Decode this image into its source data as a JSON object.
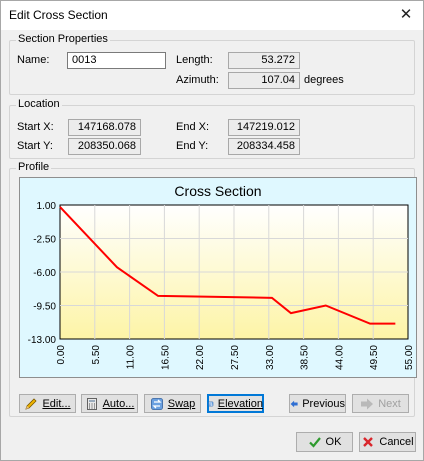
{
  "window": {
    "title": "Edit Cross Section",
    "close_glyph": "✕"
  },
  "section_properties": {
    "title": "Section Properties",
    "name_label": "Name:",
    "name_value": "0013",
    "length_label": "Length:",
    "length_value": "53.272",
    "azimuth_label": "Azimuth:",
    "azimuth_value": "107.04",
    "azimuth_unit": "degrees"
  },
  "location": {
    "title": "Location",
    "start_x_label": "Start X:",
    "start_x_value": "147168.078",
    "end_x_label": "End X:",
    "end_x_value": "147219.012",
    "start_y_label": "Start Y:",
    "start_y_value": "208350.068",
    "end_y_label": "End Y:",
    "end_y_value": "208334.458"
  },
  "profile": {
    "title": "Profile",
    "buttons": {
      "edit": "Edit...",
      "auto": "Auto...",
      "swap": "Swap",
      "elevation": "Elevation",
      "previous": "Previous",
      "next": "Next"
    }
  },
  "chart_data": {
    "type": "line",
    "title": "Cross Section",
    "xlabel": "",
    "ylabel": "",
    "xlim": [
      0,
      55
    ],
    "ylim": [
      -13,
      1
    ],
    "x_ticks": [
      "0.00",
      "5.50",
      "11.00",
      "16.50",
      "22.00",
      "27.50",
      "33.00",
      "38.50",
      "44.00",
      "49.50",
      "55.00"
    ],
    "y_ticks": [
      "1.00",
      "-2.50",
      "-6.00",
      "-9.50",
      "-13.00"
    ],
    "grid": true,
    "line_color": "#ff0000",
    "series": [
      {
        "x": [
          0,
          9,
          15.5,
          33.5,
          36.5,
          42,
          49,
          53
        ],
        "values": [
          0.8,
          -5.5,
          -8.5,
          -8.7,
          -10.3,
          -9.5,
          -11.4,
          -11.4
        ]
      }
    ]
  },
  "footer": {
    "ok": "OK",
    "cancel": "Cancel"
  },
  "colors": {
    "plot_top": "#ffffff",
    "plot_bottom": "#fdf4a6",
    "chart_bg": "#dff8ff",
    "ok_check": "#2e9a2e",
    "cancel_x": "#d9262c",
    "arrow_blue": "#2f6fd3"
  }
}
